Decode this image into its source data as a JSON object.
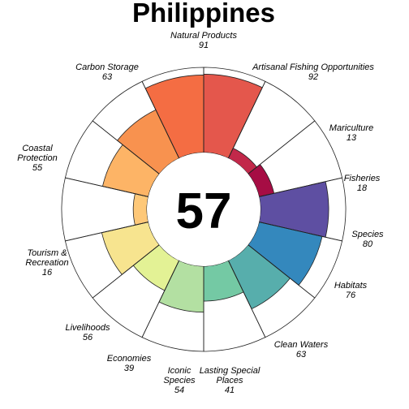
{
  "chart_data": {
    "type": "flower",
    "title": "Philippines",
    "score": "57",
    "max_value": 100,
    "petals": [
      {
        "name": "Natural Products",
        "value": 91,
        "color": "#f46d43"
      },
      {
        "name": "Artisanal Fishing Opportunities",
        "value": 92,
        "color": "#e4574c"
      },
      {
        "name": "Mariculture",
        "value": 13,
        "color": "#c2284a"
      },
      {
        "name": "Fisheries",
        "value": 18,
        "color": "#a60d44"
      },
      {
        "name": "Species",
        "value": 80,
        "color": "#5e4fa2"
      },
      {
        "name": "Habitats",
        "value": 76,
        "color": "#3488bd"
      },
      {
        "name": "Clean Waters",
        "value": 63,
        "color": "#57aeac"
      },
      {
        "name": "Lasting Special Places",
        "value": 41,
        "color": "#74c9a4"
      },
      {
        "name": "Iconic Species",
        "value": 54,
        "color": "#b3e0a2"
      },
      {
        "name": "Economies",
        "value": 39,
        "color": "#e3f295"
      },
      {
        "name": "Livelihoods",
        "value": 56,
        "color": "#f7e48f"
      },
      {
        "name": "Tourism & Recreation",
        "value": 16,
        "color": "#fec878"
      },
      {
        "name": "Coastal Protection",
        "value": 55,
        "color": "#fdb466"
      },
      {
        "name": "Carbon Storage",
        "value": 63,
        "color": "#f8924f"
      }
    ]
  }
}
